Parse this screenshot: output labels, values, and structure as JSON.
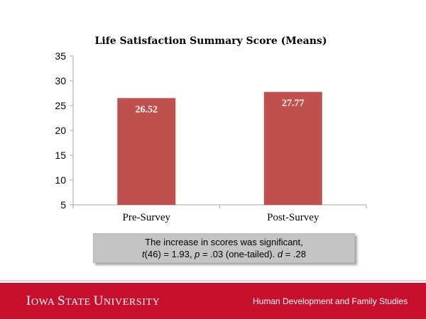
{
  "chart_data": {
    "type": "bar",
    "title": "Life Satisfaction Summary Score (Means)",
    "categories": [
      "Pre-Survey",
      "Post-Survey"
    ],
    "values": [
      26.52,
      27.77
    ],
    "data_labels": [
      "26.52",
      "27.77"
    ],
    "xlabel": "",
    "ylabel": "",
    "ylim": [
      5,
      35
    ],
    "yticks": [
      "5",
      "10",
      "15",
      "20",
      "25",
      "30",
      "35"
    ],
    "grid": false,
    "legend": "none",
    "bar_color": "#c0504d"
  },
  "note": {
    "line1": "The increase in scores was significant,",
    "line2_parts": [
      "t",
      "(46) = 1.93, ",
      "p",
      " = .03 (one-tailed). ",
      "d",
      " = .28"
    ]
  },
  "footer": {
    "university_parts": [
      "I",
      "OWA ",
      "S",
      "TATE ",
      "U",
      "NIVERSITY"
    ],
    "department": "Human Development and Family Studies",
    "color": "#c8102e"
  }
}
